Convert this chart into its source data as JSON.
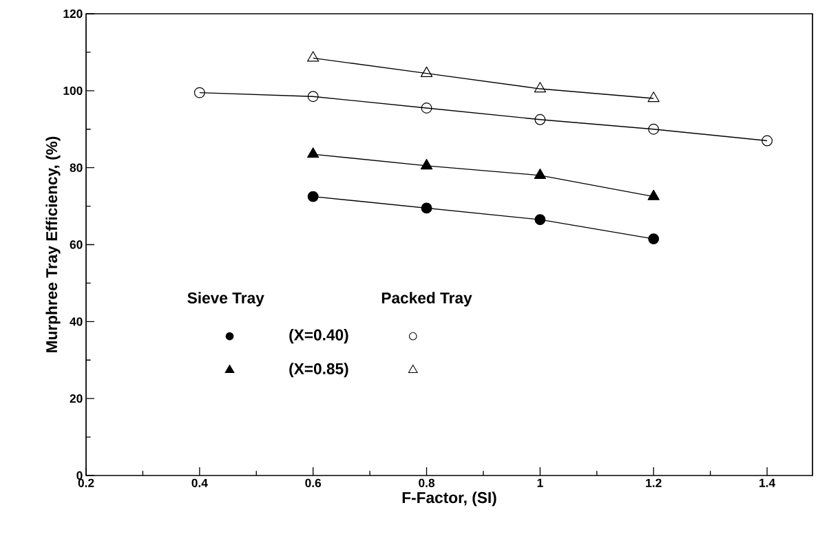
{
  "chart_data": {
    "type": "line",
    "xlabel": "F-Factor, (SI)",
    "ylabel": "Murphree Tray Efficiency, (%)",
    "xlim": [
      0.2,
      1.48
    ],
    "ylim": [
      0,
      120
    ],
    "xticks": [
      0.2,
      0.4,
      0.6,
      0.8,
      1,
      1.2,
      1.4
    ],
    "yticks": [
      0,
      20,
      40,
      60,
      80,
      100,
      120
    ],
    "grid": false,
    "line_style": "solid",
    "annotations": [
      "Sieve Tray",
      "Packed Tray",
      "(X=0.40)",
      "(X=0.85)"
    ],
    "series": [
      {
        "color": "#000000",
        "marker": "circle",
        "x": [
          0.6,
          0.8,
          1.0,
          1.2
        ],
        "values": [
          72.5,
          69.5,
          66.5,
          61.5
        ]
      },
      {
        "color": "#000000",
        "marker": "triangle",
        "x": [
          0.6,
          0.8,
          1.0,
          1.2
        ],
        "values": [
          83.5,
          80.5,
          78,
          72.5
        ]
      },
      {
        "color": "#000000",
        "marker": "circle",
        "x": [
          0.4,
          0.6,
          0.8,
          1.0,
          1.2,
          1.4
        ],
        "values": [
          99.5,
          98.5,
          95.5,
          92.5,
          90,
          87
        ]
      },
      {
        "color": "#000000",
        "marker": "triangle",
        "x": [
          0.6,
          0.8,
          1.0,
          1.2
        ],
        "values": [
          108.5,
          104.5,
          100.5,
          98
        ]
      }
    ]
  }
}
